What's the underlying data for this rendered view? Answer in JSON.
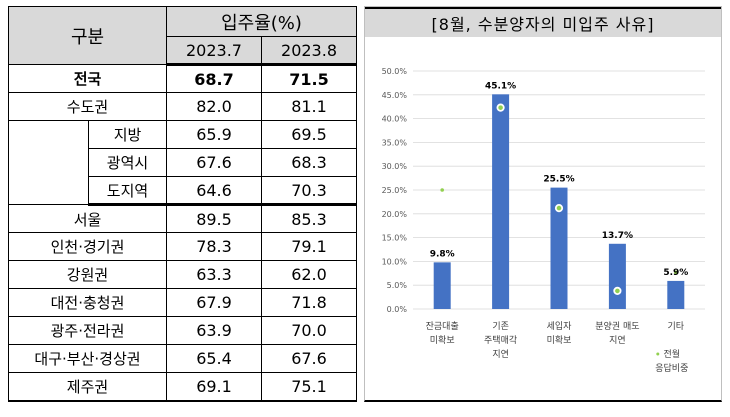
{
  "table": {
    "header": {
      "group": "구분",
      "metric": "입주율(%)",
      "col1": "2023.7",
      "col2": "2023.8"
    },
    "rows": [
      {
        "label": "전국",
        "v1": "68.7",
        "v2": "71.5"
      },
      {
        "label": "수도권",
        "v1": "82.0",
        "v2": "81.1"
      },
      {
        "label": "지방",
        "v1": "65.9",
        "v2": "69.5"
      },
      {
        "label": "광역시",
        "v1": "67.6",
        "v2": "68.3"
      },
      {
        "label": "도지역",
        "v1": "64.6",
        "v2": "70.3"
      },
      {
        "label": "서울",
        "v1": "89.5",
        "v2": "85.3"
      },
      {
        "label": "인천·경기권",
        "v1": "78.3",
        "v2": "79.1"
      },
      {
        "label": "강원권",
        "v1": "63.3",
        "v2": "62.0"
      },
      {
        "label": "대전·충청권",
        "v1": "67.9",
        "v2": "71.8"
      },
      {
        "label": "광주·전라권",
        "v1": "63.9",
        "v2": "70.0"
      },
      {
        "label": "대구·부산·경상권",
        "v1": "65.4",
        "v2": "67.6"
      },
      {
        "label": "제주권",
        "v1": "69.1",
        "v2": "75.1"
      }
    ]
  },
  "chart_data": {
    "type": "bar",
    "title": "[8월, 수분양자의 미입주 사유]",
    "categories": [
      [
        "잔금대출",
        "미확보"
      ],
      [
        "기존",
        "주택매각",
        "지연"
      ],
      [
        "세입자",
        "미확보"
      ],
      [
        "분양권 매도",
        "지연"
      ],
      [
        "기타"
      ]
    ],
    "series": [
      {
        "name": "8월",
        "values": [
          9.8,
          45.1,
          25.5,
          13.7,
          5.9
        ],
        "value_labels": [
          "9.8%",
          "45.1%",
          "25.5%",
          "13.7%",
          "5.9%"
        ]
      },
      {
        "name": "전월",
        "values": [
          25.0,
          42.3,
          21.2,
          3.8,
          7.7
        ]
      }
    ],
    "legend": {
      "marker": "·",
      "lines": [
        "전월",
        "응답비중"
      ],
      "placement": "right"
    },
    "ylim": [
      0,
      50
    ],
    "ytick_step": 5,
    "yticks": [
      "0.0%",
      "5.0%",
      "10.0%",
      "15.0%",
      "20.0%",
      "25.0%",
      "30.0%",
      "35.0%",
      "40.0%",
      "45.0%",
      "50.0%"
    ],
    "xlabel": "",
    "ylabel": "",
    "colors": {
      "bar": "#4472c4",
      "marker": "#92d050",
      "grid": "#d9d9d9"
    }
  }
}
